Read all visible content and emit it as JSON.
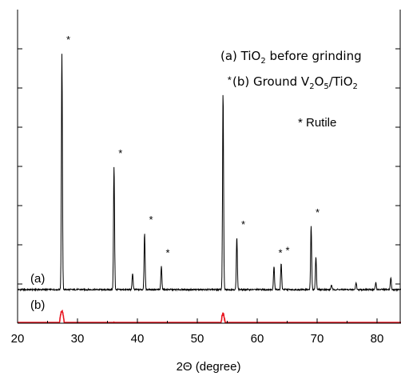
{
  "chart_data": {
    "type": "line",
    "xlabel": "2Θ (degree)",
    "x_ticks": [
      20,
      30,
      40,
      50,
      60,
      70,
      80
    ],
    "xlim": [
      20,
      84
    ],
    "ylabel": "",
    "y_ticks_labeled": false,
    "grid": false,
    "legend": {
      "placement": "top-right",
      "entry_a": {
        "prefix": "(a) TiO",
        "sub": "2",
        "suffix": " before grinding"
      },
      "entry_b": {
        "prefix": "(b) Ground V",
        "sub1": "2",
        "mid1": "O",
        "sub2": "5",
        "mid2": "/TiO",
        "sub3": "2"
      },
      "rutile_note": "* Rutile"
    },
    "marker_symbol": "*",
    "rutile_peaks": [
      27.4,
      36.1,
      41.2,
      44.0,
      54.3,
      56.6,
      62.8,
      64.0,
      69.0
    ],
    "series": [
      {
        "label": "(a)",
        "color": "#000000",
        "baseline": 0.0,
        "peaks": [
          {
            "x": 27.4,
            "h": 1.0
          },
          {
            "x": 36.1,
            "h": 0.52
          },
          {
            "x": 39.2,
            "h": 0.07
          },
          {
            "x": 41.2,
            "h": 0.24
          },
          {
            "x": 44.0,
            "h": 0.1
          },
          {
            "x": 54.3,
            "h": 0.83
          },
          {
            "x": 56.6,
            "h": 0.22
          },
          {
            "x": 62.8,
            "h": 0.1
          },
          {
            "x": 64.0,
            "h": 0.11
          },
          {
            "x": 69.0,
            "h": 0.27
          },
          {
            "x": 69.8,
            "h": 0.14
          },
          {
            "x": 72.4,
            "h": 0.02
          },
          {
            "x": 76.5,
            "h": 0.03
          },
          {
            "x": 79.8,
            "h": 0.03
          },
          {
            "x": 82.3,
            "h": 0.05
          }
        ]
      },
      {
        "label": "(b)",
        "color": "#e8141e",
        "baseline": -0.195,
        "peaks": [
          {
            "x": 27.4,
            "h": 0.11
          },
          {
            "x": 36.1,
            "h": 0.055
          },
          {
            "x": 41.2,
            "h": 0.05
          },
          {
            "x": 44.0,
            "h": 0.012
          },
          {
            "x": 54.3,
            "h": 0.095
          },
          {
            "x": 56.6,
            "h": 0.035
          },
          {
            "x": 62.8,
            "h": 0.012
          },
          {
            "x": 64.0,
            "h": 0.018
          },
          {
            "x": 69.0,
            "h": 0.035
          },
          {
            "x": 69.8,
            "h": 0.02
          },
          {
            "x": 82.3,
            "h": 0.01
          }
        ]
      }
    ]
  }
}
